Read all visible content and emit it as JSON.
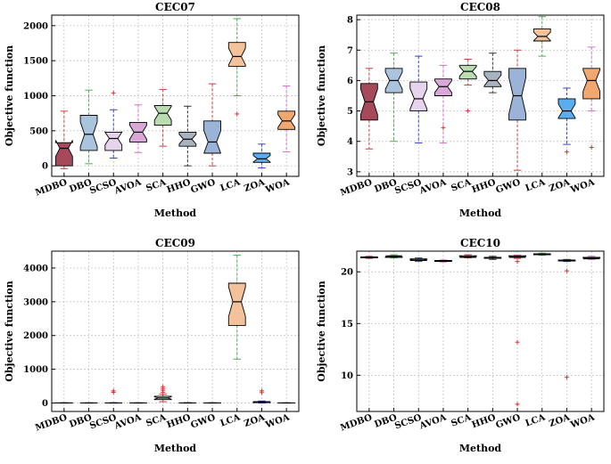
{
  "chart_data": [
    {
      "type": "box",
      "title": "CEC07",
      "xlabel": "Method",
      "ylabel": "Objective function",
      "ylim": [
        -150,
        2150
      ],
      "yticks": [
        0,
        500,
        1000,
        1500,
        2000
      ],
      "grid": true,
      "categories": [
        "MDBO",
        "DBO",
        "SCSO",
        "AVOA",
        "SCA",
        "HHO",
        "GWO",
        "LCA",
        "ZOA",
        "WOA"
      ],
      "boxes": [
        {
          "name": "MDBO",
          "min": -40,
          "q1": 0,
          "median": 250,
          "q3": 330,
          "max": 780,
          "outliers": [],
          "color": "#a6495a",
          "whisker": "#d04040"
        },
        {
          "name": "DBO",
          "min": 30,
          "q1": 220,
          "median": 450,
          "q3": 720,
          "max": 1080,
          "outliers": [],
          "color": "#a9c4dc",
          "whisker": "#4caf50"
        },
        {
          "name": "SCSO",
          "min": 110,
          "q1": 220,
          "median": 390,
          "q3": 480,
          "max": 800,
          "outliers": [
            1040
          ],
          "color": "#e6d4ec",
          "whisker": "#3344cc"
        },
        {
          "name": "AVOA",
          "min": 190,
          "q1": 340,
          "median": 480,
          "q3": 620,
          "max": 870,
          "outliers": [],
          "color": "#d9a8d8",
          "whisker": "#d070d0"
        },
        {
          "name": "SCA",
          "min": 280,
          "q1": 580,
          "median": 750,
          "q3": 860,
          "max": 1090,
          "outliers": [],
          "color": "#b9dcb0",
          "whisker": "#c04040"
        },
        {
          "name": "HHO",
          "min": 0,
          "q1": 280,
          "median": 380,
          "q3": 480,
          "max": 850,
          "outliers": [],
          "color": "#a9b2c0",
          "whisker": "#333333"
        },
        {
          "name": "GWO",
          "min": 0,
          "q1": 180,
          "median": 340,
          "q3": 640,
          "max": 1170,
          "outliers": [],
          "color": "#9ab3d6",
          "whisker": "#d04040"
        },
        {
          "name": "LCA",
          "min": 1000,
          "q1": 1420,
          "median": 1560,
          "q3": 1760,
          "max": 2100,
          "outliers": [
            740
          ],
          "color": "#f3c19a",
          "whisker": "#4caf50"
        },
        {
          "name": "ZOA",
          "min": -30,
          "q1": 50,
          "median": 100,
          "q3": 180,
          "max": 310,
          "outliers": [],
          "color": "#5aaef0",
          "whisker": "#3344cc"
        },
        {
          "name": "WOA",
          "min": 200,
          "q1": 520,
          "median": 640,
          "q3": 780,
          "max": 1140,
          "outliers": [],
          "color": "#f0a870",
          "whisker": "#d070d0"
        }
      ]
    },
    {
      "type": "box",
      "title": "CEC08",
      "xlabel": "Method",
      "ylabel": "Objective function",
      "ylim": [
        2.85,
        8.15
      ],
      "yticks": [
        3,
        4,
        5,
        6,
        7,
        8
      ],
      "grid": true,
      "categories": [
        "MDBO",
        "DBO",
        "SCSO",
        "AVOA",
        "SCA",
        "HHO",
        "GWO",
        "LCA",
        "ZOA",
        "WOA"
      ],
      "boxes": [
        {
          "name": "MDBO",
          "min": 3.75,
          "q1": 4.7,
          "median": 5.3,
          "q3": 5.9,
          "max": 6.4,
          "outliers": [],
          "color": "#a6495a",
          "whisker": "#d04040"
        },
        {
          "name": "DBO",
          "min": 4.0,
          "q1": 5.6,
          "median": 6.0,
          "q3": 6.4,
          "max": 6.9,
          "outliers": [],
          "color": "#a9c4dc",
          "whisker": "#4caf50"
        },
        {
          "name": "SCSO",
          "min": 3.95,
          "q1": 5.0,
          "median": 5.4,
          "q3": 5.95,
          "max": 6.8,
          "outliers": [],
          "color": "#e6d4ec",
          "whisker": "#3344cc"
        },
        {
          "name": "AVOA",
          "min": 3.95,
          "q1": 5.5,
          "median": 5.8,
          "q3": 6.05,
          "max": 6.5,
          "outliers": [
            4.45
          ],
          "color": "#d9a8d8",
          "whisker": "#d070d0"
        },
        {
          "name": "SCA",
          "min": 5.85,
          "q1": 6.05,
          "median": 6.3,
          "q3": 6.5,
          "max": 6.7,
          "outliers": [
            5.0
          ],
          "color": "#b9dcb0",
          "whisker": "#c04040"
        },
        {
          "name": "HHO",
          "min": 5.6,
          "q1": 5.8,
          "median": 6.0,
          "q3": 6.3,
          "max": 6.9,
          "outliers": [],
          "color": "#a9b2c0",
          "whisker": "#333333"
        },
        {
          "name": "GWO",
          "min": 3.05,
          "q1": 4.7,
          "median": 5.5,
          "q3": 6.4,
          "max": 7.0,
          "outliers": [],
          "color": "#9ab3d6",
          "whisker": "#d04040"
        },
        {
          "name": "LCA",
          "min": 6.8,
          "q1": 7.3,
          "median": 7.45,
          "q3": 7.7,
          "max": 8.1,
          "outliers": [],
          "color": "#f3c19a",
          "whisker": "#4caf50"
        },
        {
          "name": "ZOA",
          "min": 3.9,
          "q1": 4.75,
          "median": 5.0,
          "q3": 5.4,
          "max": 5.75,
          "outliers": [
            3.65
          ],
          "color": "#5aaef0",
          "whisker": "#3344cc"
        },
        {
          "name": "WOA",
          "min": 5.0,
          "q1": 5.4,
          "median": 6.0,
          "q3": 6.4,
          "max": 7.1,
          "outliers": [
            3.8
          ],
          "color": "#f0a870",
          "whisker": "#d070d0"
        }
      ]
    },
    {
      "type": "box",
      "title": "CEC09",
      "xlabel": "Method",
      "ylabel": "Objective function",
      "ylim": [
        -250,
        4500
      ],
      "yticks": [
        0,
        1000,
        2000,
        3000,
        4000
      ],
      "grid": true,
      "categories": [
        "MDBO",
        "DBO",
        "SCSO",
        "AVOA",
        "SCA",
        "HHO",
        "GWO",
        "LCA",
        "ZOA",
        "WOA"
      ],
      "boxes": [
        {
          "name": "MDBO",
          "min": 0,
          "q1": 0,
          "median": 0,
          "q3": 5,
          "max": 10,
          "outliers": [],
          "color": "#a6495a",
          "whisker": "#d04040"
        },
        {
          "name": "DBO",
          "min": 0,
          "q1": 0,
          "median": 0,
          "q3": 5,
          "max": 10,
          "outliers": [],
          "color": "#a9c4dc",
          "whisker": "#4caf50"
        },
        {
          "name": "SCSO",
          "min": 0,
          "q1": 0,
          "median": 0,
          "q3": 5,
          "max": 10,
          "outliers": [
            320,
            360
          ],
          "color": "#e6d4ec",
          "whisker": "#3344cc"
        },
        {
          "name": "AVOA",
          "min": 0,
          "q1": 0,
          "median": 0,
          "q3": 5,
          "max": 10,
          "outliers": [],
          "color": "#d9a8d8",
          "whisker": "#d070d0"
        },
        {
          "name": "SCA",
          "min": 40,
          "q1": 100,
          "median": 150,
          "q3": 200,
          "max": 260,
          "outliers": [
            320,
            380,
            430,
            480
          ],
          "color": "#b9dcb0",
          "whisker": "#c04040"
        },
        {
          "name": "HHO",
          "min": 0,
          "q1": 0,
          "median": 0,
          "q3": 5,
          "max": 10,
          "outliers": [],
          "color": "#a9b2c0",
          "whisker": "#333333"
        },
        {
          "name": "GWO",
          "min": 0,
          "q1": 0,
          "median": 0,
          "q3": 5,
          "max": 10,
          "outliers": [],
          "color": "#9ab3d6",
          "whisker": "#d04040"
        },
        {
          "name": "LCA",
          "min": 1300,
          "q1": 2300,
          "median": 3000,
          "q3": 3550,
          "max": 4380,
          "outliers": [],
          "color": "#f3c19a",
          "whisker": "#4caf50"
        },
        {
          "name": "ZOA",
          "min": 0,
          "q1": 10,
          "median": 20,
          "q3": 40,
          "max": 60,
          "outliers": [
            310,
            360
          ],
          "color": "#5aaef0",
          "whisker": "#3344cc"
        },
        {
          "name": "WOA",
          "min": 0,
          "q1": 0,
          "median": 0,
          "q3": 5,
          "max": 10,
          "outliers": [],
          "color": "#f0a870",
          "whisker": "#d070d0"
        }
      ]
    },
    {
      "type": "box",
      "title": "CEC10",
      "xlabel": "Method",
      "ylabel": "Objective function",
      "ylim": [
        6.5,
        22.0
      ],
      "yticks": [
        10,
        15,
        20
      ],
      "grid": true,
      "categories": [
        "MDBO",
        "DBO",
        "SCSO",
        "AVOA",
        "SCA",
        "HHO",
        "GWO",
        "LCA",
        "ZOA",
        "WOA"
      ],
      "boxes": [
        {
          "name": "MDBO",
          "min": 21.3,
          "q1": 21.35,
          "median": 21.4,
          "q3": 21.45,
          "max": 21.5,
          "outliers": [],
          "color": "#a6495a",
          "whisker": "#d04040"
        },
        {
          "name": "DBO",
          "min": 21.35,
          "q1": 21.4,
          "median": 21.5,
          "q3": 21.55,
          "max": 21.65,
          "outliers": [],
          "color": "#a9c4dc",
          "whisker": "#4caf50"
        },
        {
          "name": "SCSO",
          "min": 21.0,
          "q1": 21.1,
          "median": 21.15,
          "q3": 21.25,
          "max": 21.35,
          "outliers": [],
          "color": "#e6d4ec",
          "whisker": "#3344cc"
        },
        {
          "name": "AVOA",
          "min": 20.95,
          "q1": 21.0,
          "median": 21.05,
          "q3": 21.1,
          "max": 21.15,
          "outliers": [],
          "color": "#d9a8d8",
          "whisker": "#d070d0"
        },
        {
          "name": "SCA",
          "min": 21.35,
          "q1": 21.4,
          "median": 21.45,
          "q3": 21.55,
          "max": 21.65,
          "outliers": [],
          "color": "#b9dcb0",
          "whisker": "#c04040"
        },
        {
          "name": "HHO",
          "min": 21.2,
          "q1": 21.3,
          "median": 21.35,
          "q3": 21.4,
          "max": 21.5,
          "outliers": [],
          "color": "#a9b2c0",
          "whisker": "#333333"
        },
        {
          "name": "GWO",
          "min": 21.3,
          "q1": 21.4,
          "median": 21.45,
          "q3": 21.55,
          "max": 21.6,
          "outliers": [
            21.0,
            13.2,
            7.2
          ],
          "color": "#9ab3d6",
          "whisker": "#d04040"
        },
        {
          "name": "LCA",
          "min": 21.6,
          "q1": 21.65,
          "median": 21.7,
          "q3": 21.75,
          "max": 21.8,
          "outliers": [],
          "color": "#f3c19a",
          "whisker": "#4caf50"
        },
        {
          "name": "ZOA",
          "min": 21.0,
          "q1": 21.05,
          "median": 21.1,
          "q3": 21.15,
          "max": 21.2,
          "outliers": [
            20.1,
            9.8
          ],
          "color": "#5aaef0",
          "whisker": "#3344cc"
        },
        {
          "name": "WOA",
          "min": 21.2,
          "q1": 21.25,
          "median": 21.3,
          "q3": 21.4,
          "max": 21.5,
          "outliers": [],
          "color": "#f0a870",
          "whisker": "#d070d0"
        }
      ]
    }
  ]
}
